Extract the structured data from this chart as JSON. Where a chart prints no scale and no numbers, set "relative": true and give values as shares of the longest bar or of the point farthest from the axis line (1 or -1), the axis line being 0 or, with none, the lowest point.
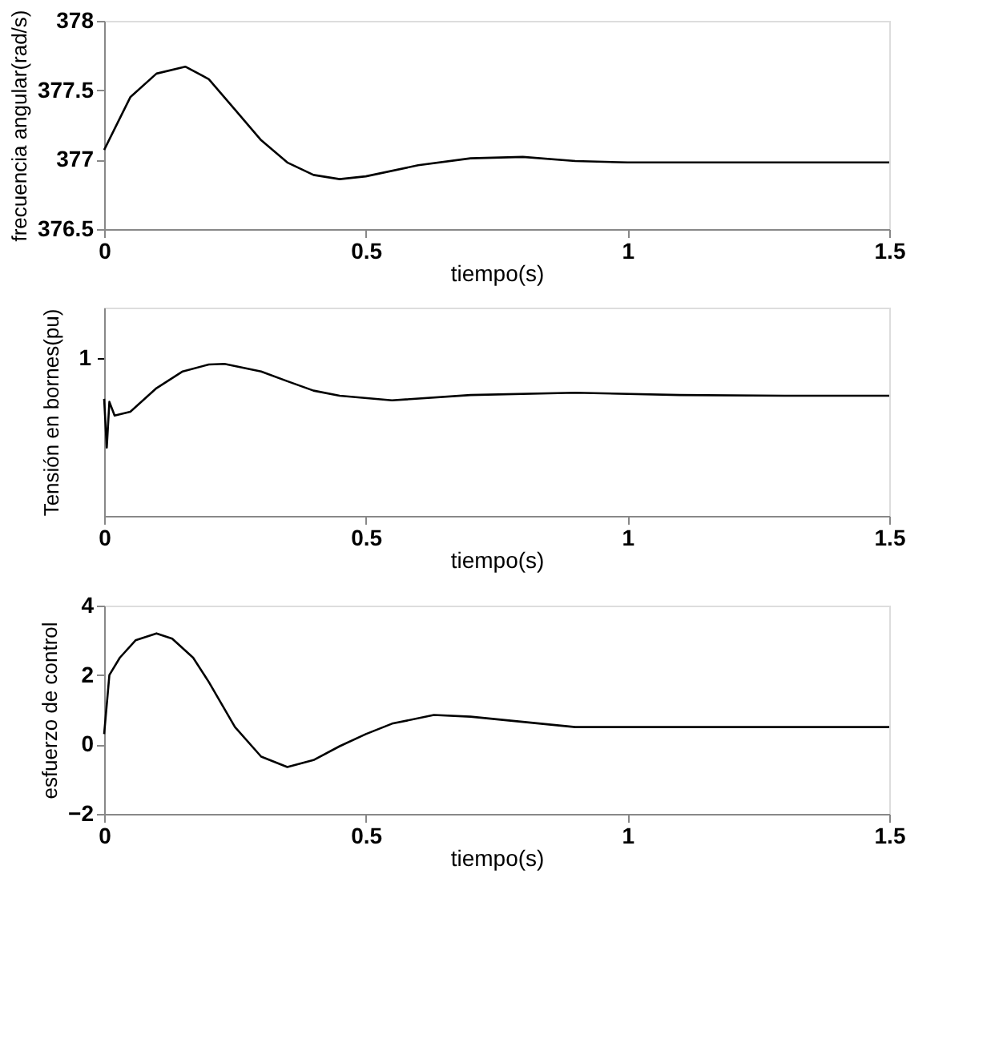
{
  "chart_data": [
    {
      "type": "line",
      "xlabel": "tiempo(s)",
      "ylabel": "frecuencia angular(rad/s)",
      "color": "#000000",
      "grid": false,
      "xlim": [
        0,
        1.5
      ],
      "xticks": [
        0,
        0.5,
        1,
        1.5
      ],
      "ylim": [
        376.5,
        378
      ],
      "yticks": [
        376.5,
        377,
        377.5,
        378
      ],
      "x": [
        0,
        0.05,
        0.1,
        0.155,
        0.2,
        0.25,
        0.3,
        0.35,
        0.4,
        0.45,
        0.5,
        0.6,
        0.7,
        0.8,
        0.9,
        1.0,
        1.1,
        1.2,
        1.3,
        1.4,
        1.5
      ],
      "values": [
        377.07,
        377.45,
        377.62,
        377.67,
        377.58,
        377.36,
        377.14,
        376.98,
        376.89,
        376.86,
        376.88,
        376.96,
        377.01,
        377.02,
        376.99,
        376.98,
        376.98,
        376.98,
        376.98,
        376.98,
        376.98
      ]
    },
    {
      "type": "line",
      "relative": true,
      "xlabel": "tiempo(s)",
      "ylabel": "Tensión en bornes(pu)",
      "color": "#000000",
      "grid": false,
      "xlim": [
        0,
        1.5
      ],
      "xticks": [
        0,
        0.5,
        1,
        1.5
      ],
      "annotations": [
        "1"
      ],
      "x": [
        0,
        0.005,
        0.01,
        0.02,
        0.05,
        0.1,
        0.15,
        0.2,
        0.23,
        0.3,
        0.35,
        0.4,
        0.45,
        0.55,
        0.7,
        0.9,
        1.1,
        1.3,
        1.5
      ],
      "values": [
        0.77,
        0.45,
        0.75,
        0.66,
        0.685,
        0.84,
        0.95,
        0.996,
        1,
        0.95,
        0.886,
        0.824,
        0.79,
        0.76,
        0.795,
        0.81,
        0.795,
        0.79,
        0.79
      ]
    },
    {
      "type": "line",
      "xlabel": "tiempo(s)",
      "ylabel": "esfuerzo de control",
      "color": "#000000",
      "grid": false,
      "xlim": [
        0,
        1.5
      ],
      "xticks": [
        0,
        0.5,
        1,
        1.5
      ],
      "ylim": [
        -2,
        4
      ],
      "yticks": [
        -2,
        0,
        2,
        4
      ],
      "x": [
        0,
        0.01,
        0.03,
        0.06,
        0.1,
        0.13,
        0.17,
        0.2,
        0.25,
        0.3,
        0.35,
        0.4,
        0.45,
        0.5,
        0.55,
        0.63,
        0.7,
        0.8,
        0.9,
        1.0,
        1.2,
        1.5
      ],
      "values": [
        0.3,
        2,
        2.5,
        3.0,
        3.2,
        3.05,
        2.5,
        1.8,
        0.5,
        -0.35,
        -0.65,
        -0.45,
        -0.05,
        0.3,
        0.6,
        0.85,
        0.8,
        0.65,
        0.5,
        0.5,
        0.5,
        0.5
      ]
    }
  ]
}
